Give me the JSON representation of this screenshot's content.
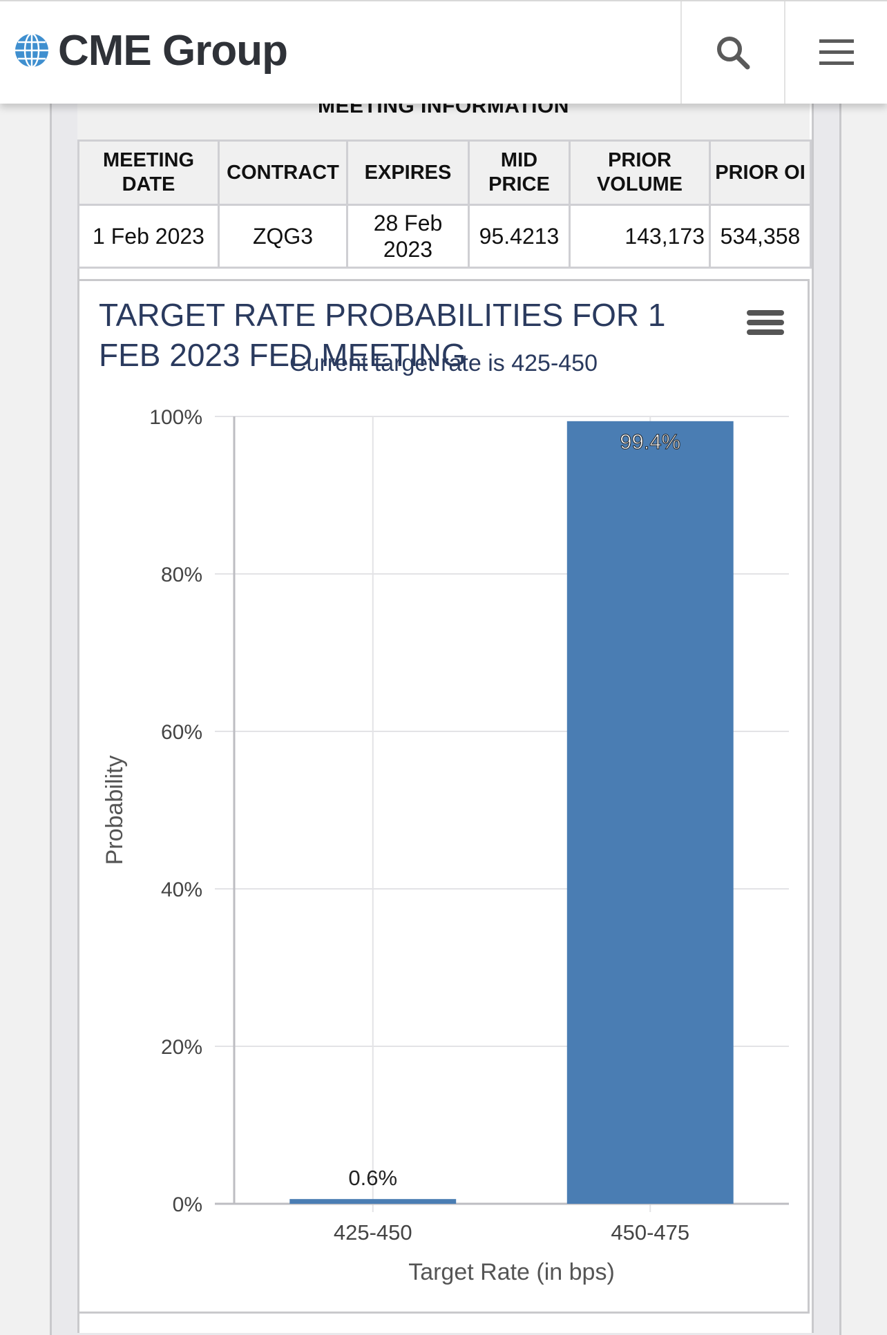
{
  "header": {
    "logo_text": "CME Group",
    "search_icon": "search-icon",
    "menu_icon": "hamburger-menu-icon"
  },
  "meeting_info": {
    "title": "MEETING INFORMATION",
    "headers": {
      "meeting_date": "MEETING DATE",
      "contract": "CONTRACT",
      "expires": "EXPIRES",
      "mid_price": "MID PRICE",
      "prior_volume": "PRIOR VOLUME",
      "prior_oi": "PRIOR OI"
    },
    "row": {
      "meeting_date": "1 Feb 2023",
      "contract": "ZQG3",
      "expires": "28 Feb 2023",
      "mid_price": "95.4213",
      "prior_volume": "143,173",
      "prior_oi": "534,358"
    }
  },
  "chart_data": {
    "type": "bar",
    "title": "TARGET RATE PROBABILITIES FOR 1 FEB 2023 FED MEETING",
    "subtitle": "Current target rate is 425-450",
    "xlabel": "Target Rate (in bps)",
    "ylabel": "Probability",
    "categories": [
      "425-450",
      "450-475"
    ],
    "values": [
      0.6,
      99.4
    ],
    "data_labels": [
      "0.6%",
      "99.4%"
    ],
    "ylim": [
      0,
      100
    ],
    "yticks": [
      0,
      20,
      40,
      60,
      80,
      100
    ],
    "ytick_labels": [
      "0%",
      "20%",
      "40%",
      "60%",
      "80%",
      "100%"
    ],
    "grid": true,
    "bar_color": "#4a7db3",
    "menu_icon": "chart-context-menu-icon"
  }
}
